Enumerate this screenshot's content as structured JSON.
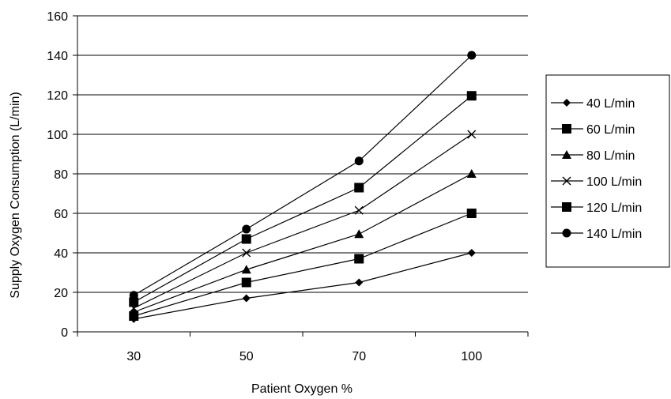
{
  "chart_data": {
    "type": "line",
    "title": "",
    "xlabel": "Patient Oxygen %",
    "ylabel": "Supply Oxygen Consumption (L/min)",
    "categories": [
      "30",
      "50",
      "70",
      "100"
    ],
    "ylim": [
      0,
      160
    ],
    "yticks": [
      "0",
      "20",
      "40",
      "60",
      "80",
      "100",
      "120",
      "140",
      "160"
    ],
    "grid": "horizontal",
    "legend_position": "right",
    "series": [
      {
        "name": "40 L/min",
        "marker": "diamond",
        "values": [
          6.5,
          17,
          25,
          40
        ]
      },
      {
        "name": "60 L/min",
        "marker": "square",
        "values": [
          8,
          25,
          37,
          60
        ]
      },
      {
        "name": "80 L/min",
        "marker": "triangle",
        "values": [
          10,
          31.5,
          49.5,
          80
        ]
      },
      {
        "name": "100 L/min",
        "marker": "x",
        "values": [
          12,
          40,
          61.5,
          100
        ]
      },
      {
        "name": "120 L/min",
        "marker": "square",
        "values": [
          15,
          47,
          73,
          119.5
        ]
      },
      {
        "name": "140 L/min",
        "marker": "circle",
        "values": [
          18.5,
          52,
          86.5,
          140
        ]
      }
    ],
    "colors": {
      "line": "#000000",
      "grid": "#000000",
      "background": "#ffffff"
    }
  }
}
